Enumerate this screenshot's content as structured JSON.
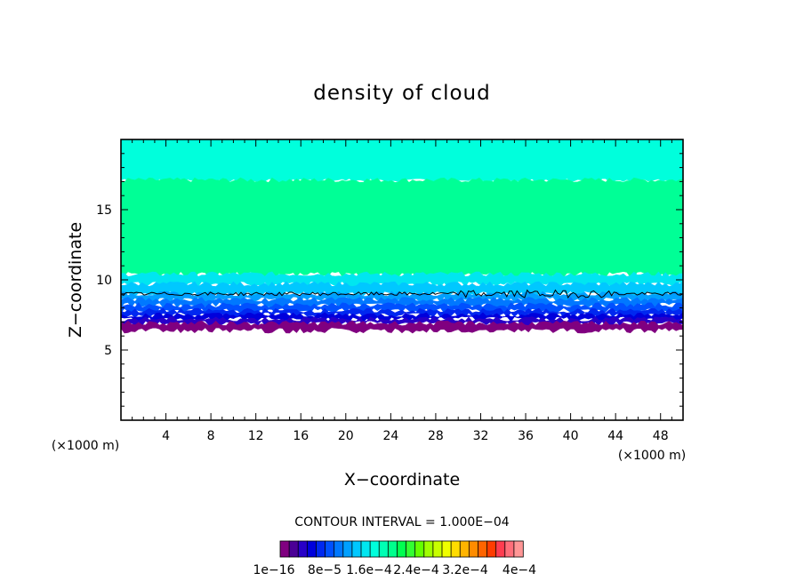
{
  "chart_data": {
    "type": "heatmap",
    "title": "density of cloud",
    "xlabel": "X−coordinate",
    "ylabel": "Z−coordinate",
    "x_unit_label_left": "(×1000 m)",
    "x_unit_label_right": "(×1000 m)",
    "xlim": [
      0,
      50
    ],
    "ylim": [
      0,
      20
    ],
    "x_ticks": [
      4,
      8,
      12,
      16,
      20,
      24,
      28,
      32,
      36,
      40,
      44,
      48
    ],
    "x_tick_labels": [
      "4",
      "8",
      "12",
      "16",
      "20",
      "24",
      "28",
      "32",
      "36",
      "40",
      "44",
      "48"
    ],
    "y_ticks": [
      5,
      10,
      15
    ],
    "y_tick_labels": [
      "5",
      "10",
      "15"
    ],
    "contour_interval_label": "CONTOUR INTERVAL = 1.000E−04",
    "colorbar": {
      "colors": [
        "#800080",
        "#4b0096",
        "#2800c8",
        "#0000dc",
        "#0028f0",
        "#0050ff",
        "#0078ff",
        "#00a0ff",
        "#00c8ff",
        "#00e6f0",
        "#00ffdc",
        "#00ffb4",
        "#00ff8c",
        "#00ff50",
        "#32ff32",
        "#64ff00",
        "#a0ff00",
        "#c8ff00",
        "#f0ff00",
        "#ffdc00",
        "#ffb400",
        "#ff8c00",
        "#ff6400",
        "#ff3c00",
        "#ff3c50",
        "#ff6e7a",
        "#ff9696"
      ],
      "tick_labels": [
        "1e−16",
        "8e−5",
        "1.6e−4",
        "2.4e−4",
        "3.2e−4",
        "4e−4"
      ]
    },
    "cloud_layers": [
      {
        "z_bottom": 17.1,
        "z_top": 20.0,
        "color": "#00ffdc"
      },
      {
        "z_bottom": 10.4,
        "z_top": 17.1,
        "color": "#00ff96"
      },
      {
        "z_bottom": 9.7,
        "z_top": 10.4,
        "color": "#00e6f0"
      },
      {
        "z_bottom": 9.0,
        "z_top": 9.7,
        "color": "#00c8ff"
      },
      {
        "z_bottom": 8.6,
        "z_top": 9.0,
        "color": "#00a0ff"
      },
      {
        "z_bottom": 8.2,
        "z_top": 8.6,
        "color": "#0078ff"
      },
      {
        "z_bottom": 7.8,
        "z_top": 8.2,
        "color": "#0050ff"
      },
      {
        "z_bottom": 7.5,
        "z_top": 7.8,
        "color": "#0028f0"
      },
      {
        "z_bottom": 7.2,
        "z_top": 7.5,
        "color": "#0000dc"
      },
      {
        "z_bottom": 6.9,
        "z_top": 7.2,
        "color": "#2800c8"
      },
      {
        "z_bottom": 6.4,
        "z_top": 6.9,
        "color": "#800080"
      }
    ],
    "contour_line_z": 9.0,
    "grid": false
  }
}
